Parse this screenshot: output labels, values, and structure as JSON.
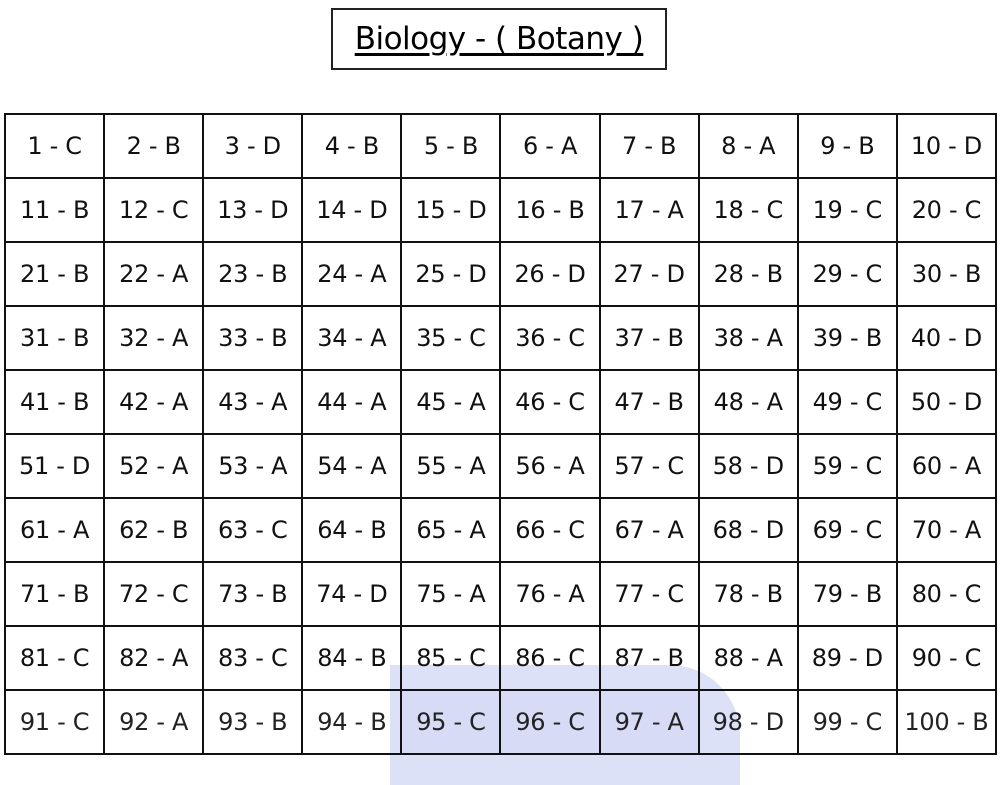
{
  "title": "Biology - ( Botany )",
  "colors": {
    "watermark": "#dde1f7",
    "border": "#111111"
  },
  "answers": [
    [
      "1 - C",
      "2 - B",
      "3 - D",
      "4 - B",
      "5 - B",
      "6 - A",
      "7 - B",
      "8 - A",
      "9 - B",
      "10 - D"
    ],
    [
      "11 - B",
      "12 - C",
      "13 - D",
      "14 - D",
      "15 - D",
      "16 - B",
      "17 - A",
      "18 - C",
      "19 - C",
      "20 - C"
    ],
    [
      "21 - B",
      "22 - A",
      "23 - B",
      "24 - A",
      "25 - D",
      "26 - D",
      "27 - D",
      "28 - B",
      "29 - C",
      "30 - B"
    ],
    [
      "31 - B",
      "32 - A",
      "33 - B",
      "34 - A",
      "35 - C",
      "36 - C",
      "37 - B",
      "38 - A",
      "39 - B",
      "40 - D"
    ],
    [
      "41 - B",
      "42 - A",
      "43 - A",
      "44 - A",
      "45 - A",
      "46 - C",
      "47 - B",
      "48 - A",
      "49 - C",
      "50 - D"
    ],
    [
      "51 - D",
      "52 - A",
      "53 - A",
      "54 - A",
      "55 - A",
      "56 - A",
      "57 - C",
      "58 - D",
      "59 - C",
      "60 - A"
    ],
    [
      "61 - A",
      "62 - B",
      "63 - C",
      "64 - B",
      "65 - A",
      "66 - C",
      "67 - A",
      "68 - D",
      "69 - C",
      "70 - A"
    ],
    [
      "71 - B",
      "72 - C",
      "73 - B",
      "74 - D",
      "75 - A",
      "76 - A",
      "77 - C",
      "78 - B",
      "79 - B",
      "80 - C"
    ],
    [
      "81 - C",
      "82 - A",
      "83 - C",
      "84 - B",
      "85 - C",
      "86 - C",
      "87 - B",
      "88 - A",
      "89 - D",
      "90 - C"
    ],
    [
      "91 - C",
      "92 - A",
      "93 - B",
      "94 - B",
      "95 - C",
      "96 - C",
      "97 - A",
      "98 - D",
      "99 - C",
      "100 - B"
    ]
  ]
}
